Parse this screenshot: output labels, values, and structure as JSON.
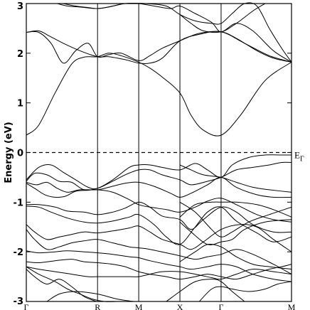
{
  "chart_data": {
    "type": "line",
    "title": "",
    "xlabel": "",
    "ylabel": "Energy (eV)",
    "ylim": [
      -3,
      3
    ],
    "yticks": [
      -3,
      -2,
      -1,
      0,
      1,
      2,
      3
    ],
    "ytick_labels": [
      "-3",
      "-2",
      "-1",
      "0",
      "1",
      "2",
      "3"
    ],
    "x_range": [
      0,
      6.44
    ],
    "kpoints": [
      {
        "label": "Γ",
        "x": 0
      },
      {
        "label": "R",
        "x": 1.73
      },
      {
        "label": "M",
        "x": 2.73
      },
      {
        "label": "X",
        "x": 3.73
      },
      {
        "label": "Γ",
        "x": 4.73
      },
      {
        "label": "M",
        "x": 6.44
      }
    ],
    "fermi_level": {
      "energy": 0,
      "label_main": "E",
      "label_sub": "Γ",
      "style": "dashed"
    },
    "grid": false,
    "legend": "none",
    "series": [
      {
        "x": [
          0,
          0.3,
          0.7,
          1.1,
          1.4,
          1.73,
          2.0,
          2.3,
          2.73,
          3.0,
          3.3,
          3.73,
          4.0,
          4.3,
          4.73,
          5.2,
          5.8,
          6.44
        ],
        "y": [
          0.35,
          0.55,
          1.2,
          1.78,
          1.92,
          1.93,
          2.0,
          1.95,
          1.82,
          1.7,
          1.52,
          1.2,
          0.75,
          0.45,
          0.35,
          0.75,
          1.45,
          1.82
        ]
      },
      {
        "x": [
          0,
          0.3,
          0.6,
          0.9,
          1.2,
          1.5,
          1.73,
          2.0,
          2.3,
          2.73,
          3.0,
          3.3,
          3.73,
          4.2,
          4.73,
          5.1,
          5.6,
          6.0,
          6.44
        ],
        "y": [
          2.42,
          2.42,
          2.2,
          1.8,
          2.05,
          2.2,
          1.93,
          1.97,
          2.0,
          1.85,
          1.95,
          2.1,
          2.25,
          2.4,
          2.43,
          2.3,
          2.05,
          1.9,
          1.82
        ]
      },
      {
        "x": [
          0,
          0.3,
          0.55,
          0.9,
          1.3,
          1.73,
          2.0,
          2.4,
          2.73,
          3.0,
          3.3,
          3.73,
          4.2,
          4.73,
          5.3,
          5.9,
          6.44
        ],
        "y": [
          2.42,
          2.45,
          2.35,
          2.2,
          2.05,
          1.93,
          1.93,
          1.87,
          1.8,
          1.8,
          1.9,
          2.25,
          2.38,
          2.43,
          2.2,
          1.95,
          1.82
        ]
      },
      {
        "x": [
          0.75,
          1.0,
          1.3,
          1.73,
          2.1,
          2.4,
          2.73,
          3.1,
          3.5,
          3.73,
          4.1,
          4.5,
          4.73,
          5.1,
          5.5,
          6.0,
          6.44
        ],
        "y": [
          3.0,
          2.95,
          2.93,
          2.9,
          2.95,
          3.0,
          3.0,
          2.95,
          2.9,
          2.95,
          2.8,
          2.62,
          2.43,
          2.6,
          2.45,
          2.05,
          1.82
        ]
      },
      {
        "x": [
          0.9,
          1.2,
          1.5,
          1.73,
          2.0,
          2.4,
          2.9,
          3.4,
          3.73,
          4.1,
          4.5,
          4.73,
          5.0,
          5.3,
          5.6,
          5.9,
          6.2,
          6.44
        ],
        "y": [
          3.0,
          2.95,
          2.92,
          2.9,
          2.93,
          3.0,
          3.0,
          2.95,
          2.78,
          2.65,
          2.6,
          2.6,
          2.8,
          3.0,
          2.95,
          2.5,
          2.1,
          1.82
        ]
      },
      {
        "x": [
          3.73,
          4.0,
          4.3,
          4.73,
          5.1,
          5.5,
          5.8
        ],
        "y": [
          2.78,
          2.6,
          2.45,
          2.43,
          2.6,
          2.85,
          3.0
        ]
      },
      {
        "x": [
          0,
          0.3,
          0.6,
          0.9,
          1.2,
          1.5,
          1.73,
          2.1,
          2.5,
          2.73,
          3.0,
          3.3,
          3.73,
          4.1,
          4.4,
          4.73,
          5.0,
          5.4,
          5.8,
          6.2,
          6.44
        ],
        "y": [
          -0.55,
          -0.3,
          -0.25,
          -0.4,
          -0.55,
          -0.7,
          -0.72,
          -0.55,
          -0.3,
          -0.25,
          -0.25,
          -0.3,
          -0.35,
          -0.22,
          -0.35,
          -0.5,
          -0.25,
          -0.1,
          -0.05,
          -0.05,
          -0.05
        ]
      },
      {
        "x": [
          0,
          0.2,
          0.5,
          0.8,
          1.1,
          1.4,
          1.73,
          2.0,
          2.4,
          2.73,
          3.0,
          3.3,
          3.73,
          4.0,
          4.4,
          4.73,
          5.1,
          5.5,
          5.9,
          6.2,
          6.44
        ],
        "y": [
          -0.58,
          -0.42,
          -0.45,
          -0.58,
          -0.6,
          -0.75,
          -0.72,
          -0.62,
          -0.45,
          -0.35,
          -0.35,
          -0.45,
          -0.55,
          -0.65,
          -0.58,
          -0.5,
          -0.35,
          -0.3,
          -0.25,
          -0.2,
          -0.2
        ]
      },
      {
        "x": [
          0,
          0.25,
          0.5,
          0.75,
          1.0,
          1.3,
          1.73,
          2.0,
          2.4,
          2.73,
          3.1,
          3.5,
          3.73,
          4.0,
          4.4,
          4.73,
          5.1,
          5.6,
          6.0,
          6.44
        ],
        "y": [
          -0.6,
          -0.65,
          -0.6,
          -0.72,
          -0.8,
          -0.75,
          -0.75,
          -0.7,
          -0.62,
          -0.6,
          -0.68,
          -0.82,
          -0.9,
          -0.82,
          -0.65,
          -0.5,
          -0.7,
          -0.85,
          -0.9,
          -0.9
        ]
      },
      {
        "x": [
          0,
          0.2,
          0.45,
          0.7,
          0.95,
          1.2,
          1.5,
          1.73,
          2.1,
          2.5,
          2.73,
          3.0,
          3.4,
          3.73,
          4.1,
          4.4,
          4.73,
          5.1,
          5.6,
          6.0,
          6.44
        ],
        "y": [
          -0.62,
          -0.72,
          -0.85,
          -0.9,
          -0.88,
          -0.78,
          -0.76,
          -0.75,
          -0.8,
          -0.95,
          -1.05,
          -1.1,
          -1.15,
          -1.2,
          -1.1,
          -0.98,
          -0.92,
          -1.05,
          -1.25,
          -1.35,
          -1.4
        ]
      },
      {
        "x": [
          0,
          0.3,
          0.7,
          1.0,
          1.4,
          1.73,
          2.1,
          2.4,
          2.73,
          3.0,
          3.3,
          3.73,
          4.0,
          4.3,
          4.73,
          5.1,
          5.5,
          6.0,
          6.44
        ],
        "y": [
          -1.05,
          -1.05,
          -1.1,
          -1.18,
          -1.2,
          -1.25,
          -1.2,
          -1.12,
          -1.0,
          -1.1,
          -1.28,
          -1.35,
          -1.55,
          -1.35,
          -1.1,
          -1.2,
          -1.45,
          -1.6,
          -1.6
        ]
      },
      {
        "x": [
          0,
          0.3,
          0.6,
          1.0,
          1.4,
          1.73,
          2.1,
          2.5,
          2.73,
          3.1,
          3.4,
          3.73,
          4.1,
          4.4,
          4.73,
          5.1,
          5.6,
          6.0,
          6.44
        ],
        "y": [
          -1.08,
          -1.1,
          -1.2,
          -1.32,
          -1.4,
          -1.42,
          -1.38,
          -1.3,
          -1.25,
          -1.45,
          -1.7,
          -1.85,
          -1.5,
          -1.2,
          -1.1,
          -1.38,
          -1.62,
          -1.8,
          -1.7
        ]
      },
      {
        "x": [
          0,
          0.2,
          0.5,
          0.8,
          1.1,
          1.4,
          1.73,
          2.1,
          2.5,
          2.73,
          3.0,
          3.3,
          3.73,
          4.0,
          4.3,
          4.73,
          5.2,
          5.6,
          6.0,
          6.44
        ],
        "y": [
          -1.45,
          -1.6,
          -1.75,
          -1.7,
          -1.65,
          -1.6,
          -1.62,
          -1.58,
          -1.52,
          -1.48,
          -1.6,
          -1.75,
          -1.85,
          -1.95,
          -1.8,
          -1.55,
          -1.45,
          -1.5,
          -1.75,
          -2.0
        ]
      },
      {
        "x": [
          0,
          0.2,
          0.5,
          0.8,
          1.1,
          1.4,
          1.73,
          2.1,
          2.5,
          2.73,
          3.0,
          3.4,
          3.73,
          4.1,
          4.4,
          4.73,
          5.1,
          5.5,
          6.0,
          6.44
        ],
        "y": [
          -1.55,
          -1.75,
          -1.95,
          -1.9,
          -1.82,
          -1.78,
          -1.75,
          -1.82,
          -1.9,
          -1.92,
          -1.95,
          -2.02,
          -2.08,
          -2.15,
          -2.1,
          -2.05,
          -1.95,
          -2.05,
          -2.25,
          -2.45
        ]
      },
      {
        "x": [
          0,
          0.3,
          0.7,
          1.0,
          1.4,
          1.73,
          2.1,
          2.5,
          2.73,
          3.0,
          3.4,
          3.73,
          4.0,
          4.4,
          4.73,
          5.1,
          5.5,
          6.0,
          6.44
        ],
        "y": [
          -1.98,
          -2.02,
          -2.0,
          -1.98,
          -2.0,
          -2.02,
          -2.05,
          -2.1,
          -2.12,
          -2.18,
          -2.25,
          -2.3,
          -2.35,
          -2.3,
          -2.25,
          -2.3,
          -2.45,
          -2.55,
          -2.6
        ]
      },
      {
        "x": [
          0,
          0.3,
          0.7,
          1.1,
          1.4,
          1.73,
          2.1,
          2.4,
          2.73,
          3.0,
          3.4,
          3.73,
          4.1,
          4.4,
          4.73,
          5.1,
          5.5,
          5.9,
          6.2,
          6.44
        ],
        "y": [
          -2.2,
          -2.22,
          -2.18,
          -2.15,
          -2.2,
          -2.22,
          -2.25,
          -2.3,
          -2.4,
          -2.45,
          -2.5,
          -2.55,
          -2.5,
          -2.45,
          -2.5,
          -2.55,
          -2.45,
          -2.35,
          -2.3,
          -2.25
        ]
      },
      {
        "x": [
          0,
          0.3,
          0.7,
          1.1,
          1.5,
          1.73,
          2.1,
          2.5,
          2.73,
          3.0,
          3.3,
          3.73,
          4.1,
          4.5,
          4.73,
          5.1,
          5.5,
          6.0,
          6.44
        ],
        "y": [
          -2.3,
          -2.35,
          -2.4,
          -2.45,
          -2.5,
          -2.5,
          -2.5,
          -2.5,
          -2.5,
          -2.45,
          -2.4,
          -2.4,
          -2.45,
          -2.52,
          -2.55,
          -2.45,
          -2.35,
          -2.4,
          -2.45
        ]
      },
      {
        "x": [
          0,
          0.3,
          0.7,
          1.0,
          1.3,
          1.6,
          1.9,
          2.2
        ],
        "y": [
          -2.3,
          -2.45,
          -2.6,
          -2.75,
          -2.85,
          -2.95,
          -3.0,
          -3.0
        ]
      },
      {
        "x": [
          0,
          0.2,
          0.5,
          0.8,
          1.1,
          1.4,
          1.7
        ],
        "y": [
          -2.35,
          -2.5,
          -2.65,
          -2.55,
          -2.7,
          -2.9,
          -3.0
        ]
      },
      {
        "x": [
          0.5,
          0.8,
          1.2,
          1.73,
          2.2,
          2.6
        ],
        "y": [
          -3.0,
          -2.85,
          -2.8,
          -2.85,
          -2.95,
          -3.0
        ]
      },
      {
        "x": [
          3.4,
          3.73,
          4.1,
          4.5,
          4.73,
          5.0,
          5.3
        ],
        "y": [
          -3.0,
          -2.8,
          -2.6,
          -2.55,
          -2.6,
          -2.8,
          -3.0
        ]
      },
      {
        "x": [
          4.2,
          4.5,
          4.73,
          5.0,
          5.4,
          5.8,
          6.1,
          6.44
        ],
        "y": [
          -3.0,
          -2.75,
          -2.7,
          -2.75,
          -2.8,
          -2.75,
          -2.65,
          -2.6
        ]
      },
      {
        "x": [
          3.73,
          4.0,
          4.3,
          4.73,
          5.1,
          5.5,
          5.9,
          6.44
        ],
        "y": [
          -0.25,
          -0.35,
          -0.45,
          -0.5,
          -0.6,
          -0.7,
          -0.75,
          -0.8
        ]
      },
      {
        "x": [
          3.73,
          4.1,
          4.5,
          4.73,
          5.1,
          5.6,
          6.0,
          6.44
        ],
        "y": [
          -1.3,
          -1.05,
          -1.0,
          -1.0,
          -1.0,
          -1.05,
          -1.15,
          -1.3
        ]
      },
      {
        "x": [
          3.73,
          4.0,
          4.4,
          4.73,
          5.0,
          5.3,
          5.8,
          6.44
        ],
        "y": [
          -1.4,
          -1.6,
          -1.85,
          -1.8,
          -1.75,
          -1.55,
          -1.4,
          -1.35
        ]
      },
      {
        "x": [
          3.73,
          4.1,
          4.5,
          4.73,
          5.0,
          5.4,
          5.9,
          6.44
        ],
        "y": [
          -1.0,
          -1.2,
          -1.55,
          -1.7,
          -1.6,
          -1.4,
          -1.25,
          -1.1
        ]
      },
      {
        "x": [
          3.73,
          4.1,
          4.4,
          4.73,
          5.1,
          5.5,
          5.9,
          6.44
        ],
        "y": [
          -2.2,
          -2.0,
          -1.85,
          -1.9,
          -2.1,
          -2.25,
          -2.3,
          -2.35
        ]
      }
    ]
  }
}
